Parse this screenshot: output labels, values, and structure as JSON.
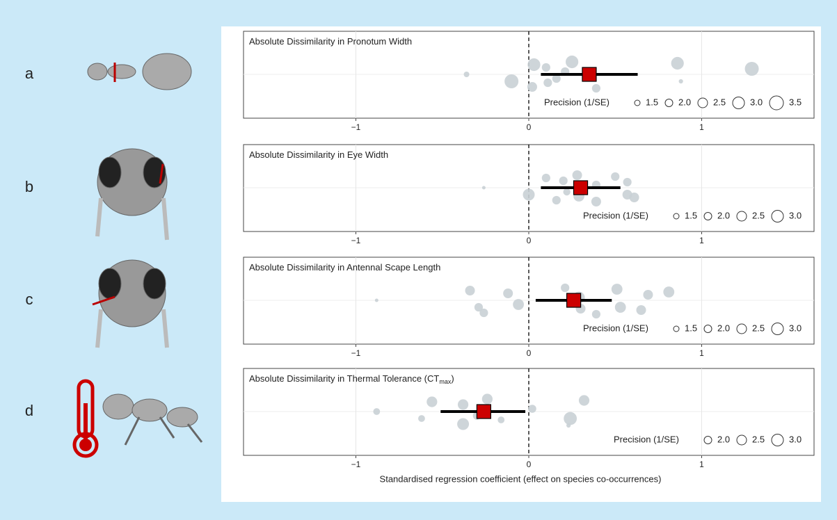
{
  "x_label": "Standardised regression coefficient (effect on species co-occurrences)",
  "chart_data": [
    {
      "type": "forest",
      "panel": "a",
      "title": "Absolute Dissimilarity in Pronotum Width",
      "xlim": [
        -1.65,
        1.65
      ],
      "xticks": [
        {
          "value": -1,
          "label": "−1"
        },
        0,
        1
      ],
      "grid": true,
      "reference_line": 0,
      "points": {
        "x": [
          -0.36,
          -0.1,
          0.03,
          0.02,
          0.1,
          0.16,
          0.25,
          0.11,
          0.21,
          0.39,
          0.86,
          0.88,
          1.29
        ],
        "size": [
          1.5,
          3.5,
          3.2,
          2.5,
          2.2,
          2.2,
          3.2,
          2.2,
          2.2,
          2.2,
          3.2,
          1.2,
          3.5
        ],
        "color": "#c9d0d5"
      },
      "estimate": {
        "value": 0.35,
        "ci": [
          0.07,
          0.63
        ],
        "color": "#cc0000"
      },
      "size_legend": {
        "title": "Precision (1/SE)",
        "values": [
          1.5,
          {
            "value": 2,
            "label": "2.0"
          },
          2.5,
          {
            "value": 3,
            "label": "3.0"
          },
          3.5
        ]
      }
    },
    {
      "type": "forest",
      "panel": "b",
      "title": "Absolute Dissimilarity in Eye Width",
      "xlim": [
        -1.65,
        1.65
      ],
      "xticks": [
        {
          "value": -1,
          "label": "−1"
        },
        0,
        1
      ],
      "grid": true,
      "reference_line": 0,
      "points": {
        "x": [
          -0.26,
          0.0,
          0.1,
          0.16,
          0.2,
          0.22,
          0.28,
          0.29,
          0.39,
          0.39,
          0.5,
          0.57,
          0.57,
          0.61
        ],
        "size": [
          1.0,
          3.0,
          2.2,
          2.2,
          2.2,
          1.9,
          2.5,
          2.8,
          2.2,
          2.5,
          2.2,
          2.5,
          2.2,
          2.5
        ],
        "color": "#c9d0d5"
      },
      "estimate": {
        "value": 0.3,
        "ci": [
          0.07,
          0.53
        ],
        "color": "#cc0000"
      },
      "size_legend": {
        "title": "Precision (1/SE)",
        "values": [
          1.5,
          {
            "value": 2,
            "label": "2.0"
          },
          2.5,
          {
            "value": 3,
            "label": "3.0"
          }
        ]
      }
    },
    {
      "type": "forest",
      "panel": "c",
      "title": "Absolute Dissimilarity in Antennal Scape Length",
      "xlim": [
        -1.65,
        1.65
      ],
      "xticks": [
        {
          "value": -1,
          "label": "−1"
        },
        0,
        1
      ],
      "grid": true,
      "reference_line": 0,
      "points": {
        "x": [
          -0.88,
          -0.29,
          -0.34,
          -0.26,
          -0.12,
          -0.06,
          0.21,
          0.3,
          0.29,
          0.39,
          0.51,
          0.53,
          0.69,
          0.65,
          0.81
        ],
        "size": [
          1.0,
          2.2,
          2.5,
          2.2,
          2.5,
          2.8,
          2.2,
          2.5,
          3.0,
          2.2,
          2.8,
          2.8,
          2.5,
          2.5,
          2.8
        ],
        "color": "#c9d0d5"
      },
      "estimate": {
        "value": 0.26,
        "ci": [
          0.04,
          0.48
        ],
        "color": "#cc0000"
      },
      "size_legend": {
        "title": "Precision (1/SE)",
        "values": [
          1.5,
          {
            "value": 2,
            "label": "2.0"
          },
          2.5,
          {
            "value": 3,
            "label": "3.0"
          }
        ]
      }
    },
    {
      "type": "forest",
      "panel": "d",
      "title": "Absolute Dissimilarity in Thermal Tolerance (CT",
      "title_subscript": "max",
      "title_suffix": ")",
      "xlim": [
        -1.65,
        1.65
      ],
      "xticks": [
        {
          "value": -1,
          "label": "−1"
        },
        0,
        1
      ],
      "grid": true,
      "reference_line": 0,
      "points": {
        "x": [
          -0.88,
          -0.62,
          -0.56,
          -0.38,
          -0.38,
          -0.3,
          -0.24,
          -0.16,
          0.02,
          0.23,
          0.32,
          0.24
        ],
        "size": [
          1.8,
          1.8,
          2.7,
          3.0,
          2.7,
          2.1,
          2.7,
          1.8,
          2.1,
          1.2,
          2.7,
          3.3
        ],
        "color": "#c9d0d5"
      },
      "estimate": {
        "value": -0.26,
        "ci": [
          -0.51,
          -0.02
        ],
        "color": "#cc0000"
      },
      "size_legend": {
        "title": "Precision (1/SE)",
        "values": [
          {
            "value": 2,
            "label": "2.0"
          },
          2.5,
          {
            "value": 3,
            "label": "3.0"
          }
        ]
      }
    }
  ]
}
